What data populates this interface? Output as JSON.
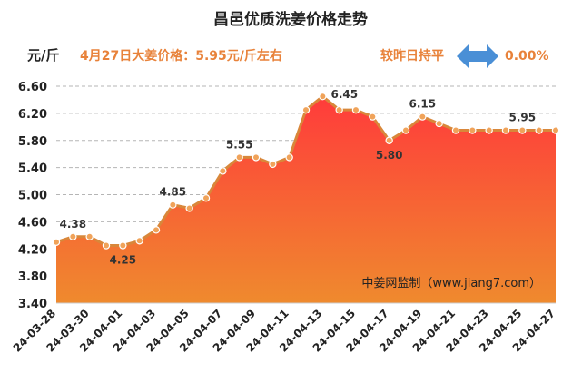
{
  "header": {
    "title": "昌邑优质洗姜价格走势",
    "unit": "元/斤",
    "headline": "4月27日大姜价格：5.95元/斤左右",
    "compare_label": "较昨日持平",
    "compare_icon": "double-arrow-icon",
    "compare_value": "0.00%"
  },
  "watermark": "中姜网监制（www.jiang7.com）",
  "colors": {
    "line": "#d9873a",
    "marker": "#f0a35a",
    "area_top": "#ff3b3b",
    "area_bottom": "#ef8a2e",
    "accent": "#e8823a",
    "arrow": "#4a8fd6"
  },
  "chart_data": {
    "type": "area",
    "title": "昌邑优质洗姜价格走势",
    "ylabel": "元/斤",
    "xlabel": "",
    "ylim": [
      3.4,
      6.6
    ],
    "yticks": [
      3.4,
      3.8,
      4.2,
      4.6,
      5.0,
      5.4,
      5.8,
      6.2,
      6.6
    ],
    "ytick_labels": [
      "3.40",
      "3.80",
      "4.20",
      "4.60",
      "5.00",
      "5.40",
      "5.80",
      "6.20",
      "6.60"
    ],
    "grid": true,
    "x": [
      "24-03-28",
      "24-03-29",
      "24-03-30",
      "24-03-31",
      "24-04-01",
      "24-04-02",
      "24-04-03",
      "24-04-04",
      "24-04-05",
      "24-04-06",
      "24-04-07",
      "24-04-08",
      "24-04-09",
      "24-04-10",
      "24-04-11",
      "24-04-12",
      "24-04-13",
      "24-04-14",
      "24-04-15",
      "24-04-16",
      "24-04-17",
      "24-04-18",
      "24-04-19",
      "24-04-20",
      "24-04-21",
      "24-04-22",
      "24-04-23",
      "24-04-24",
      "24-04-25",
      "24-04-26",
      "24-04-27"
    ],
    "xtick_labels": [
      "24-03-28",
      "24-03-30",
      "24-04-01",
      "24-04-03",
      "24-04-05",
      "24-04-07",
      "24-04-09",
      "24-04-11",
      "24-04-13",
      "24-04-15",
      "24-04-17",
      "24-04-19",
      "24-04-21",
      "24-04-23",
      "24-04-25",
      "24-04-27"
    ],
    "series": [
      {
        "values": [
          4.3,
          4.38,
          4.38,
          4.25,
          4.25,
          4.32,
          4.48,
          4.85,
          4.8,
          4.95,
          5.35,
          5.55,
          5.55,
          5.45,
          5.55,
          6.25,
          6.45,
          6.25,
          6.25,
          6.15,
          5.8,
          5.95,
          6.15,
          6.05,
          5.95,
          5.95,
          5.95,
          5.95,
          5.95,
          5.95,
          5.95
        ]
      }
    ],
    "data_labels": [
      {
        "x": "24-03-29",
        "text": "4.38"
      },
      {
        "x": "24-04-01",
        "text": "4.25"
      },
      {
        "x": "24-04-04",
        "text": "4.85"
      },
      {
        "x": "24-04-08",
        "text": "5.55"
      },
      {
        "x": "24-04-13",
        "text": "6.45"
      },
      {
        "x": "24-04-17",
        "text": "5.80"
      },
      {
        "x": "24-04-19",
        "text": "6.15"
      },
      {
        "x": "24-04-25",
        "text": "5.95"
      }
    ]
  }
}
